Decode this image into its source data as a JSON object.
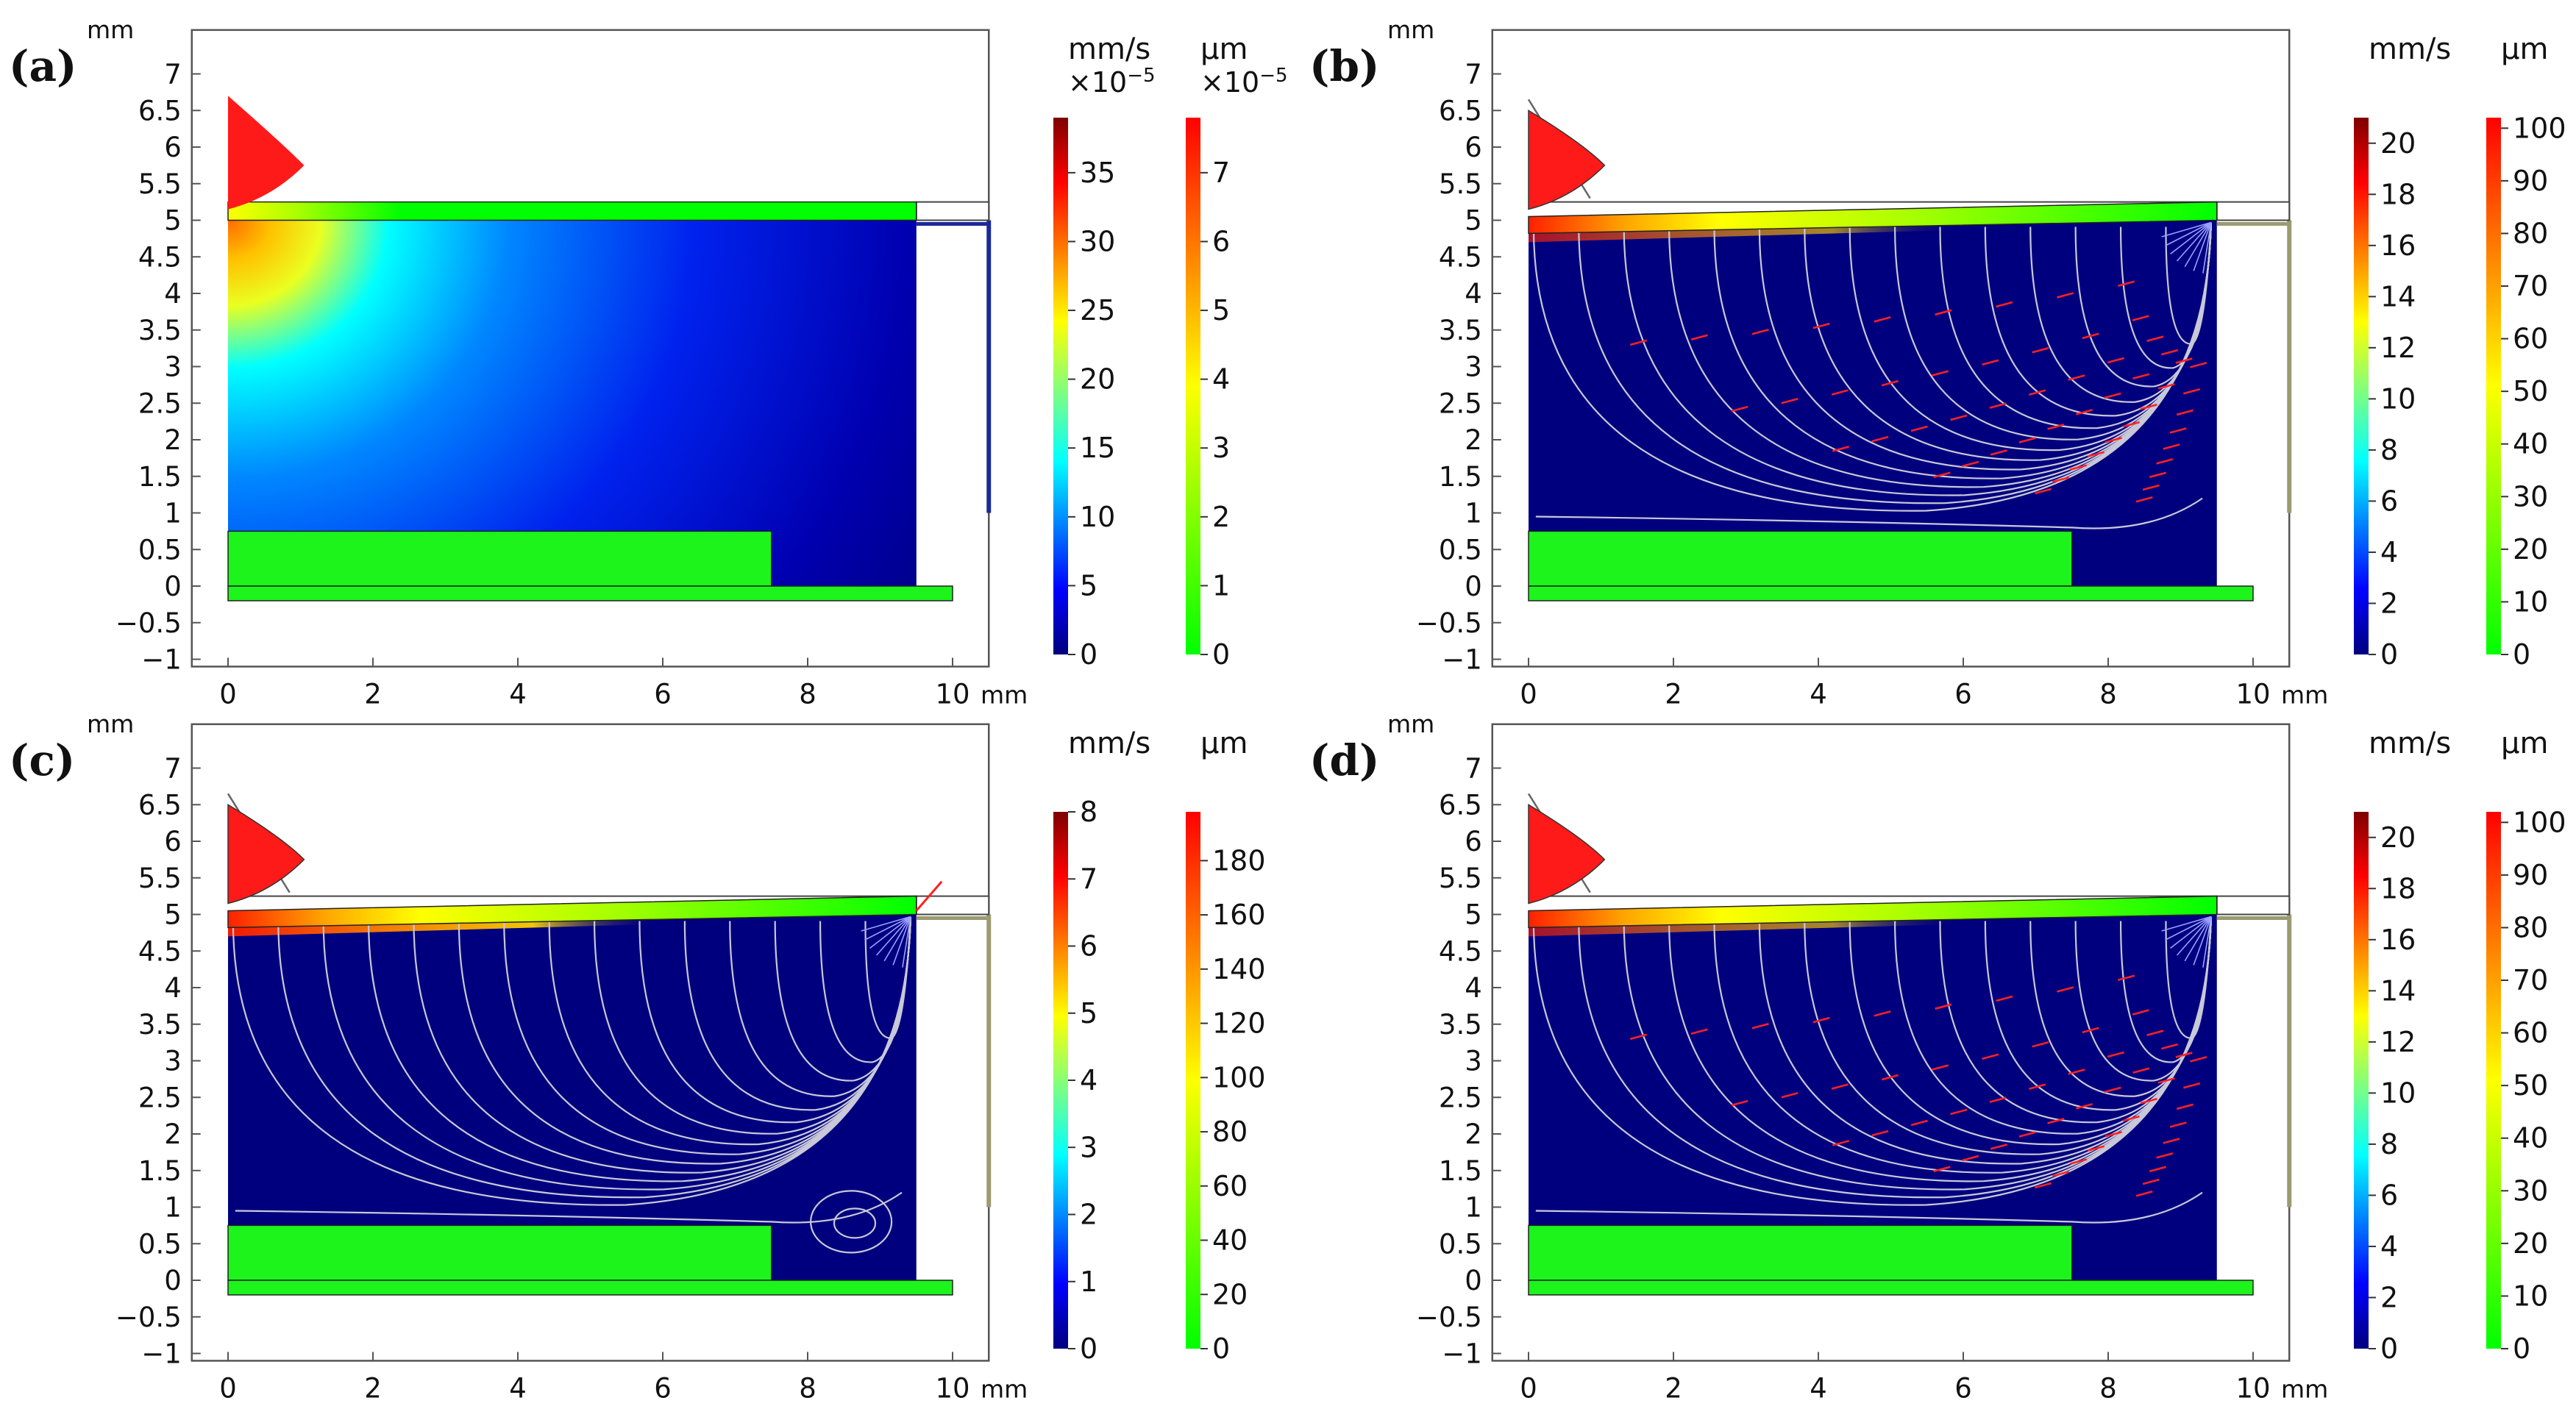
{
  "panels": [
    {
      "label": "(a)",
      "velocity_unit": "mm/s",
      "velocity_multiplier": "×10",
      "velocity_multiplier_exp": "−5",
      "velocity_ticks": [
        "0",
        "5",
        "10",
        "15",
        "20",
        "25",
        "30",
        "35"
      ],
      "velocity_range": [
        0,
        39
      ],
      "displacement_unit": "µm",
      "displacement_multiplier": "×10",
      "displacement_multiplier_exp": "−5",
      "displacement_ticks": [
        "0",
        "1",
        "2",
        "3",
        "4",
        "5",
        "6",
        "7"
      ],
      "displacement_range": [
        0,
        7.8
      ],
      "field": "hot-corner",
      "streamlines": false,
      "arrows": false,
      "deformed": false
    },
    {
      "label": "(b)",
      "velocity_unit": "mm/s",
      "velocity_ticks": [
        "0",
        "2",
        "4",
        "6",
        "8",
        "10",
        "12",
        "14",
        "16",
        "18",
        "20"
      ],
      "velocity_range": [
        0,
        21
      ],
      "displacement_unit": "µm",
      "displacement_ticks": [
        "0",
        "10",
        "20",
        "30",
        "40",
        "50",
        "60",
        "70",
        "80",
        "90",
        "100"
      ],
      "displacement_range": [
        0,
        102
      ],
      "field": "dark",
      "streamlines": true,
      "arrows": true,
      "deformed": true
    },
    {
      "label": "(c)",
      "velocity_unit": "mm/s",
      "velocity_ticks": [
        "0",
        "1",
        "2",
        "3",
        "4",
        "5",
        "6",
        "7",
        "8"
      ],
      "velocity_range": [
        0,
        8
      ],
      "displacement_unit": "µm",
      "displacement_ticks": [
        "0",
        "20",
        "40",
        "60",
        "80",
        "100",
        "120",
        "140",
        "160",
        "180"
      ],
      "displacement_range": [
        0,
        198
      ],
      "field": "dark",
      "streamlines": true,
      "arrows": false,
      "deformed": true
    },
    {
      "label": "(d)",
      "velocity_unit": "mm/s",
      "velocity_ticks": [
        "0",
        "2",
        "4",
        "6",
        "8",
        "10",
        "12",
        "14",
        "16",
        "18",
        "20"
      ],
      "velocity_range": [
        0,
        21
      ],
      "displacement_unit": "µm",
      "displacement_ticks": [
        "0",
        "10",
        "20",
        "30",
        "40",
        "50",
        "60",
        "70",
        "80",
        "90",
        "100"
      ],
      "displacement_range": [
        0,
        102
      ],
      "field": "dark",
      "streamlines": true,
      "arrows": true,
      "deformed": true
    }
  ],
  "chart_data": {
    "type": "heatmap",
    "description_free": true,
    "x_axis": {
      "unit": "mm",
      "range": [
        -0.5,
        10.5
      ],
      "ticks": [
        "0",
        "2",
        "4",
        "6",
        "8",
        "10"
      ],
      "tick_values": [
        0,
        2,
        4,
        6,
        8,
        10
      ]
    },
    "y_axis": {
      "unit": "mm",
      "range": [
        -1.1,
        7.6
      ],
      "ticks": [
        "−1",
        "−0.5",
        "0",
        "0.5",
        "1",
        "1.5",
        "2",
        "2.5",
        "3",
        "3.5",
        "4",
        "4.5",
        "5",
        "5.5",
        "6",
        "6.5",
        "7"
      ],
      "tick_values": [
        -1,
        -0.5,
        0,
        0.5,
        1,
        1.5,
        2,
        2.5,
        3,
        3.5,
        4,
        4.5,
        5,
        5.5,
        6,
        6.5,
        7
      ]
    },
    "geometry_mm": {
      "fluid_domain": {
        "x": [
          0,
          9.5
        ],
        "y": [
          0,
          5
        ]
      },
      "top_plate": {
        "x": [
          0,
          9.5
        ],
        "y": [
          5,
          5.25
        ]
      },
      "top_plate_extension": {
        "x": [
          9.5,
          10.5
        ],
        "y": [
          5,
          5.25
        ]
      },
      "bottom_block": {
        "x": [
          0,
          7.5
        ],
        "y": [
          0,
          0.75
        ]
      },
      "base_plate": {
        "x": [
          0,
          10
        ],
        "y": [
          -0.2,
          0
        ]
      },
      "side_rod": {
        "x": 10.5,
        "y": [
          1,
          5
        ]
      },
      "transducer_tip": {
        "x": [
          0,
          1.05
        ],
        "y": [
          5.25,
          6.7
        ]
      }
    },
    "colormaps": {
      "velocity": [
        "#00007f",
        "#0000ff",
        "#00ffff",
        "#ffff00",
        "#ff0000",
        "#7f0000"
      ],
      "displacement": [
        "#00ff00",
        "#ffff00",
        "#ff0000"
      ]
    }
  }
}
